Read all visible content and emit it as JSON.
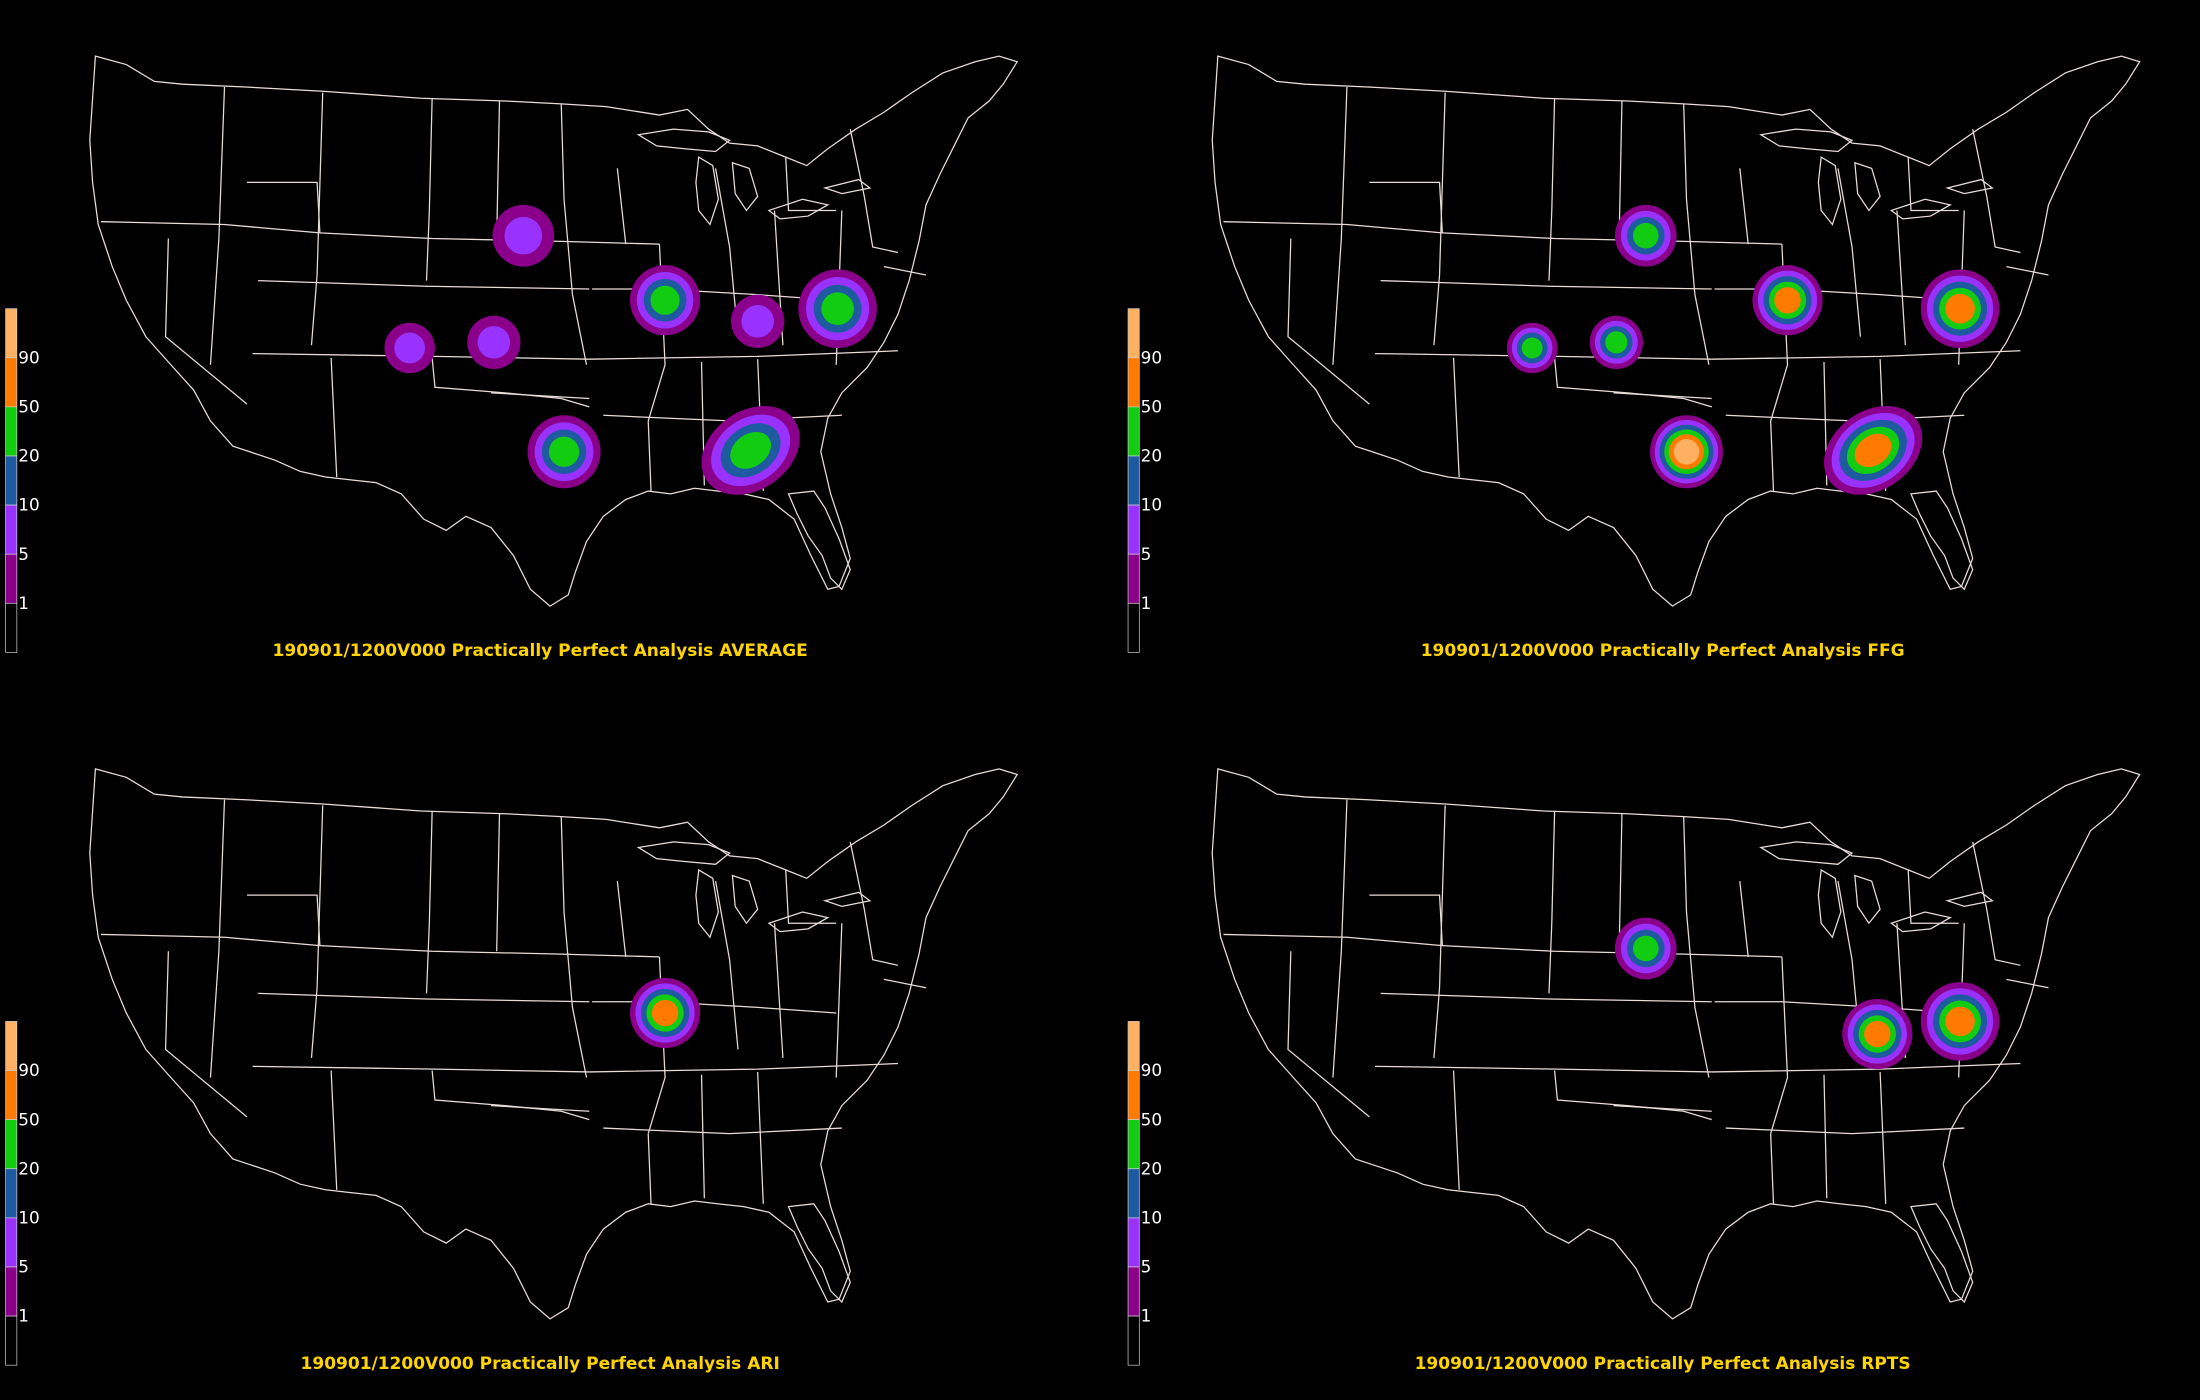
{
  "colorbar": {
    "thresholds": [
      "1",
      "5",
      "10",
      "20",
      "50",
      "90"
    ],
    "colors": [
      "#000000",
      "#8b008b",
      "#9a32ff",
      "#1e5aa0",
      "#11cc11",
      "#ff7a00",
      "#ffb060"
    ]
  },
  "panels": [
    {
      "title": "190901/1200V000 Practically Perfect Analysis AVERAGE",
      "blobs": [
        {
          "name": "nebraska-sd",
          "max": 5
        },
        {
          "name": "colorado-west",
          "max": 5
        },
        {
          "name": "colorado-east",
          "max": 5
        },
        {
          "name": "texas-north",
          "max": 20
        },
        {
          "name": "illinois",
          "max": 20
        },
        {
          "name": "indiana",
          "max": 5
        },
        {
          "name": "ohio-wv",
          "max": 20
        },
        {
          "name": "alabama-georgia",
          "max": 20
        }
      ]
    },
    {
      "title": "190901/1200V000 Practically Perfect Analysis FFG",
      "blobs": [
        {
          "name": "nebraska-sd",
          "max": 20
        },
        {
          "name": "colorado-west",
          "max": 20
        },
        {
          "name": "colorado-east",
          "max": 20
        },
        {
          "name": "texas-north",
          "max": 90
        },
        {
          "name": "illinois",
          "max": 50
        },
        {
          "name": "ohio-wv",
          "max": 50
        },
        {
          "name": "alabama-georgia",
          "max": 50
        }
      ]
    },
    {
      "title": "190901/1200V000 Practically Perfect Analysis ARI",
      "blobs": [
        {
          "name": "illinois",
          "max": 50
        }
      ]
    },
    {
      "title": "190901/1200V000 Practically Perfect Analysis RPTS",
      "blobs": [
        {
          "name": "nebraska-sd",
          "max": 20
        },
        {
          "name": "kentucky",
          "max": 50
        },
        {
          "name": "ohio-wv",
          "max": 50
        }
      ]
    }
  ]
}
